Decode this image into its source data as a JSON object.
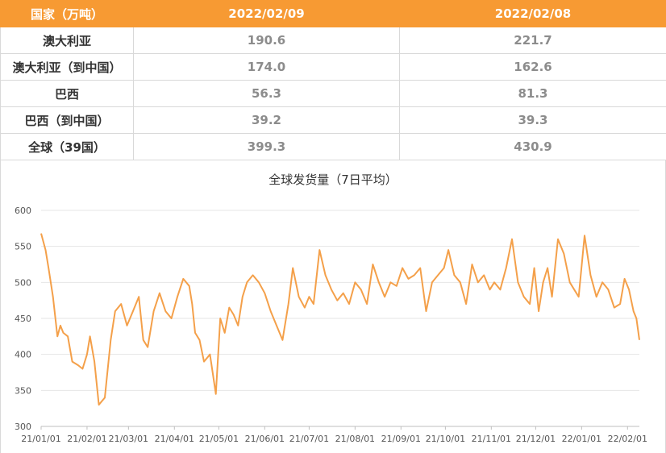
{
  "table": {
    "headers": [
      "国家（万吨）",
      "2022/02/09",
      "2022/02/08"
    ],
    "rows": [
      {
        "name": "澳大利亚",
        "v1": "190.6",
        "v2": "221.7"
      },
      {
        "name": "澳大利亚（到中国）",
        "v1": "174.0",
        "v2": "162.6"
      },
      {
        "name": "巴西",
        "v1": "56.3",
        "v2": "81.3"
      },
      {
        "name": "巴西（到中国）",
        "v1": "39.2",
        "v2": "39.3"
      },
      {
        "name": "全球（39国）",
        "v1": "399.3",
        "v2": "430.9"
      }
    ]
  },
  "colors": {
    "accent": "#f79a33",
    "line": "#f4a04a",
    "grid": "#e6e6e6"
  },
  "chart_data": {
    "type": "line",
    "title": "全球发货量（7日平均）",
    "xlabel": "",
    "ylabel": "",
    "ylim": [
      300,
      600
    ],
    "yticks": [
      300,
      350,
      400,
      450,
      500,
      550,
      600
    ],
    "xticks": [
      "21/01/01",
      "21/02/01",
      "21/03/01",
      "21/04/01",
      "21/05/01",
      "21/06/01",
      "21/07/01",
      "21/08/01",
      "21/09/01",
      "21/10/01",
      "21/11/01",
      "21/12/01",
      "22/01/01",
      "22/02/01"
    ],
    "grid": true,
    "series": [
      {
        "name": "",
        "x": [
          "2021-01-01",
          "2021-01-04",
          "2021-01-06",
          "2021-01-09",
          "2021-01-12",
          "2021-01-14",
          "2021-01-16",
          "2021-01-19",
          "2021-01-22",
          "2021-01-26",
          "2021-01-29",
          "2021-02-01",
          "2021-02-03",
          "2021-02-06",
          "2021-02-09",
          "2021-02-13",
          "2021-02-17",
          "2021-02-20",
          "2021-02-24",
          "2021-02-28",
          "2021-03-04",
          "2021-03-08",
          "2021-03-11",
          "2021-03-14",
          "2021-03-18",
          "2021-03-22",
          "2021-03-26",
          "2021-03-30",
          "2021-04-03",
          "2021-04-07",
          "2021-04-11",
          "2021-04-13",
          "2021-04-15",
          "2021-04-18",
          "2021-04-21",
          "2021-04-25",
          "2021-04-29",
          "2021-05-02",
          "2021-05-05",
          "2021-05-08",
          "2021-05-11",
          "2021-05-14",
          "2021-05-17",
          "2021-05-20",
          "2021-05-24",
          "2021-05-28",
          "2021-06-01",
          "2021-06-05",
          "2021-06-09",
          "2021-06-13",
          "2021-06-17",
          "2021-06-20",
          "2021-06-24",
          "2021-06-28",
          "2021-07-01",
          "2021-07-04",
          "2021-07-08",
          "2021-07-12",
          "2021-07-16",
          "2021-07-20",
          "2021-07-24",
          "2021-07-28",
          "2021-08-01",
          "2021-08-05",
          "2021-08-09",
          "2021-08-13",
          "2021-08-17",
          "2021-08-21",
          "2021-08-25",
          "2021-08-29",
          "2021-09-02",
          "2021-09-06",
          "2021-09-10",
          "2021-09-14",
          "2021-09-18",
          "2021-09-22",
          "2021-09-26",
          "2021-09-30",
          "2021-10-03",
          "2021-10-07",
          "2021-10-11",
          "2021-10-15",
          "2021-10-19",
          "2021-10-23",
          "2021-10-27",
          "2021-10-31",
          "2021-11-03",
          "2021-11-07",
          "2021-11-11",
          "2021-11-15",
          "2021-11-19",
          "2021-11-23",
          "2021-11-27",
          "2021-11-30",
          "2021-12-03",
          "2021-12-06",
          "2021-12-09",
          "2021-12-12",
          "2021-12-16",
          "2021-12-20",
          "2021-12-24",
          "2021-12-27",
          "2021-12-30",
          "2022-01-03",
          "2022-01-07",
          "2022-01-11",
          "2022-01-15",
          "2022-01-19",
          "2022-01-23",
          "2022-01-27",
          "2022-01-30",
          "2022-02-02",
          "2022-02-05",
          "2022-02-07",
          "2022-02-09"
        ],
        "values": [
          568,
          545,
          520,
          480,
          425,
          440,
          430,
          425,
          390,
          385,
          380,
          400,
          425,
          390,
          330,
          340,
          420,
          460,
          470,
          440,
          460,
          480,
          420,
          410,
          460,
          485,
          460,
          450,
          480,
          505,
          495,
          470,
          430,
          420,
          390,
          400,
          345,
          450,
          430,
          465,
          455,
          440,
          480,
          500,
          510,
          500,
          485,
          460,
          440,
          420,
          470,
          520,
          480,
          465,
          480,
          470,
          545,
          510,
          490,
          475,
          485,
          470,
          500,
          490,
          470,
          525,
          500,
          480,
          500,
          495,
          520,
          505,
          510,
          520,
          460,
          500,
          510,
          520,
          545,
          510,
          500,
          470,
          525,
          500,
          510,
          490,
          500,
          490,
          520,
          560,
          500,
          480,
          470,
          520,
          460,
          500,
          520,
          480,
          560,
          540,
          500,
          490,
          480,
          565,
          510,
          480,
          500,
          490,
          465,
          470,
          505,
          490,
          460,
          450,
          420
        ]
      }
    ]
  }
}
